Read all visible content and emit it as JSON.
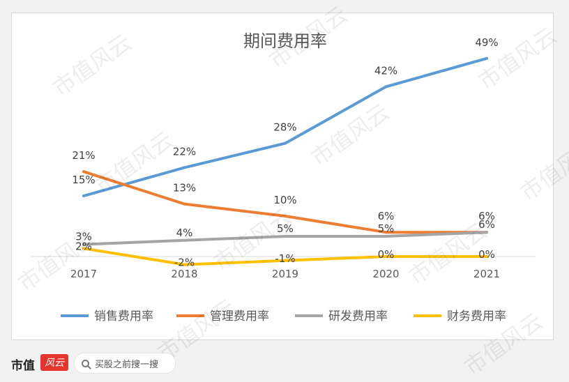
{
  "chart_data": {
    "type": "line",
    "title": "期间费用率",
    "xlabel": "",
    "ylabel": "",
    "categories": [
      "2017",
      "2018",
      "2019",
      "2020",
      "2021"
    ],
    "ylim": [
      -3,
      52
    ],
    "grid": false,
    "legend_position": "bottom",
    "series": [
      {
        "name": "销售费用率",
        "color": "#5b9bd5",
        "values": [
          15,
          22,
          28,
          42,
          49
        ],
        "labels": [
          "15%",
          "22%",
          "28%",
          "42%",
          "49%"
        ]
      },
      {
        "name": "管理费用率",
        "color": "#ed7d31",
        "values": [
          21,
          13,
          10,
          6,
          6
        ],
        "labels": [
          "21%",
          "13%",
          "10%",
          "6%",
          "6%"
        ]
      },
      {
        "name": "研发费用率",
        "color": "#a5a5a5",
        "values": [
          3,
          4,
          5,
          5,
          6
        ],
        "labels": [
          "3%",
          "4%",
          "5%",
          "5%",
          "6%"
        ]
      },
      {
        "name": "财务费用率",
        "color": "#ffc000",
        "values": [
          2,
          -2,
          -1,
          0,
          0
        ],
        "labels": [
          "2%",
          "-2%",
          "-1%",
          "0%",
          "0%"
        ]
      }
    ]
  },
  "watermark_text": "市值风云",
  "footer": {
    "brand": "市值",
    "brand_logo": "风云",
    "search_icon": "search-icon",
    "search_placeholder": "买股之前搜一搜"
  }
}
